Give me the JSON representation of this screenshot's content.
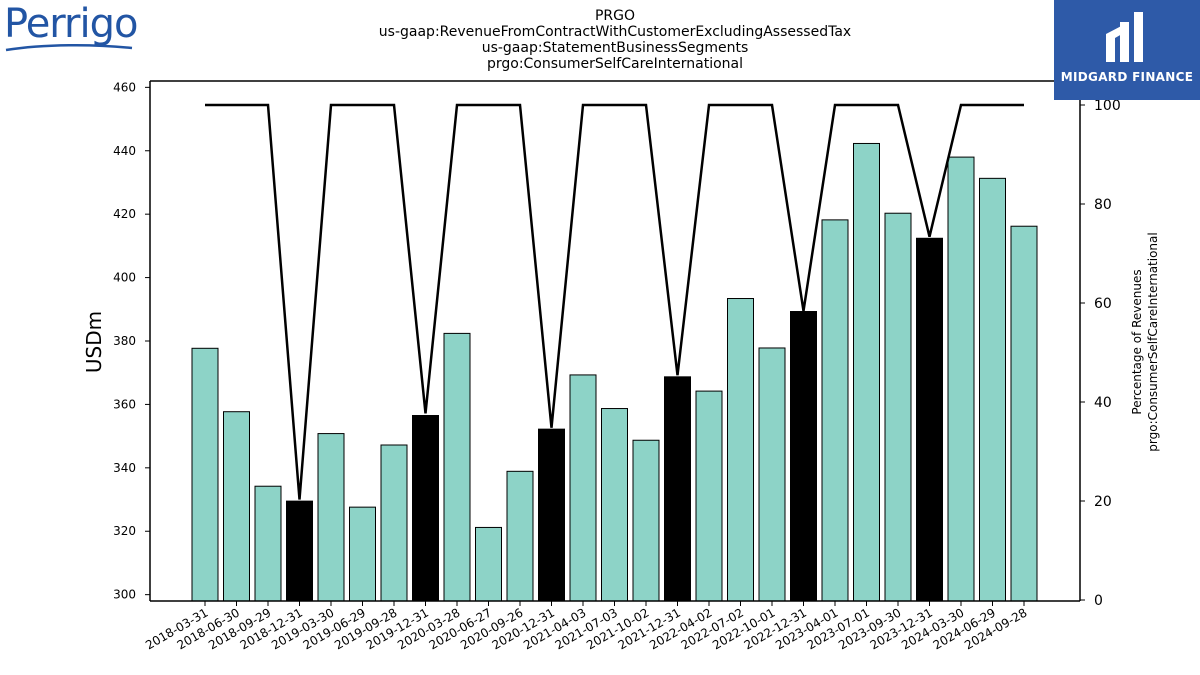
{
  "brand": {
    "left_logo": "Perrigo",
    "right_logo": "MIDGARD FINANCE"
  },
  "chart_data": {
    "type": "bar",
    "title_lines": [
      "PRGO",
      "us-gaap:RevenueFromContractWithCustomerExcludingAssessedTax",
      "us-gaap:StatementBusinessSegments",
      "prgo:ConsumerSelfCareInternational"
    ],
    "ylabel": "USDm",
    "ylabel_right": [
      "Percentage of Revenues",
      "prgo:ConsumerSelfCareInternational"
    ],
    "ylim": [
      298,
      462
    ],
    "yticks": [
      300,
      320,
      340,
      360,
      380,
      400,
      420,
      440,
      460
    ],
    "ylim_right": [
      0,
      100
    ],
    "yticks_right": [
      0,
      20,
      40,
      60,
      80,
      100
    ],
    "categories": [
      "2018-03-31",
      "2018-06-30",
      "2018-09-29",
      "2018-12-31",
      "2019-03-30",
      "2019-06-29",
      "2019-09-28",
      "2019-12-31",
      "2020-03-28",
      "2020-06-27",
      "2020-09-26",
      "2020-12-31",
      "2021-04-03",
      "2021-07-03",
      "2021-10-02",
      "2021-12-31",
      "2022-04-02",
      "2022-07-02",
      "2022-10-01",
      "2022-12-31",
      "2023-04-01",
      "2023-07-01",
      "2023-09-30",
      "2023-12-31",
      "2024-03-30",
      "2024-06-29",
      "2024-09-28"
    ],
    "values": [
      377.7,
      357.7,
      334.2,
      329.5,
      350.8,
      327.6,
      347.2,
      356.5,
      382.4,
      321.2,
      338.9,
      352.2,
      369.3,
      358.7,
      348.7,
      368.7,
      364.2,
      393.4,
      377.8,
      389.3,
      418.2,
      442.3,
      420.3,
      412.4,
      438.0,
      431.3,
      416.2
    ],
    "highlight": [
      false,
      false,
      false,
      true,
      false,
      false,
      false,
      true,
      false,
      false,
      false,
      true,
      false,
      false,
      false,
      true,
      false,
      false,
      false,
      true,
      false,
      false,
      false,
      true,
      false,
      false,
      false
    ],
    "line_series": [
      100,
      100,
      100,
      20.3,
      100,
      100,
      100,
      37.7,
      100,
      100,
      100,
      34.8,
      100,
      100,
      100,
      45.4,
      100,
      100,
      100,
      58.4,
      100,
      100,
      100,
      73.4,
      100,
      100,
      100
    ],
    "colors": {
      "bar": "#8dd3c7",
      "highlight_bar": "#000000",
      "line": "#000000",
      "bar_edge": "#000000"
    },
    "grid": false
  }
}
